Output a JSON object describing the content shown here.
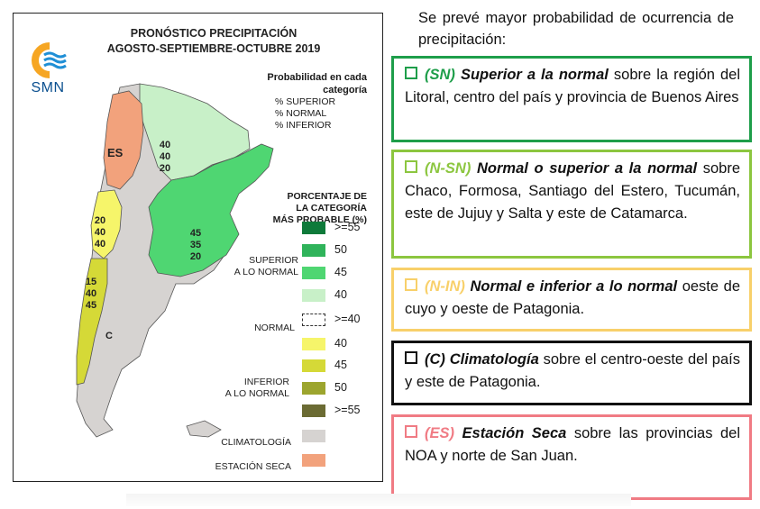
{
  "map": {
    "title_line1": "PRONÓSTICO PRECIPITACIÓN",
    "title_line2": "AGOSTO-SEPTIEMBRE-OCTUBRE 2019",
    "logo_text": "SMN",
    "prob_header": [
      "Probabilidad en cada",
      "categoría"
    ],
    "prob_lines": [
      "% SUPERIOR",
      "% NORMAL",
      "% INFERIOR"
    ],
    "pct_header": [
      "PORCENTAJE DE",
      "LA CATEGORÍA",
      "MÁS PROBABLE (%)"
    ],
    "groups": {
      "superior": [
        "SUPERIOR",
        "A LO NORMAL"
      ],
      "normal": "NORMAL",
      "inferior": [
        "INFERIOR",
        "A LO NORMAL"
      ],
      "climatologia": "CLIMATOLOGÍA",
      "estacion_seca": "ESTACIÓN SECA"
    },
    "legend": [
      {
        "label": ">=55",
        "color": "#0e7a3a"
      },
      {
        "label": "50",
        "color": "#2fb35a"
      },
      {
        "label": "45",
        "color": "#4fd672"
      },
      {
        "label": "40",
        "color": "#c8f0c8"
      },
      {
        "label": ">=40",
        "color": "#ffffff",
        "dashed": true
      },
      {
        "label": "40",
        "color": "#f6f56a"
      },
      {
        "label": "45",
        "color": "#d5d937"
      },
      {
        "label": "50",
        "color": "#9ca52e"
      },
      {
        "label": ">=55",
        "color": "#6b6b33"
      },
      {
        "label": "",
        "color": "#d6d3d1"
      },
      {
        "label": "",
        "color": "#f2a27c"
      }
    ],
    "region_labels": {
      "es": "ES",
      "nw_light": [
        "40",
        "40",
        "20"
      ],
      "green": [
        "45",
        "35",
        "20"
      ],
      "yellow1": [
        "20",
        "40",
        "40"
      ],
      "yellow2": [
        "15",
        "40",
        "45"
      ],
      "c": "C"
    },
    "colors": {
      "light_green": "#c8f0c8",
      "green": "#4fd672",
      "yellow": "#f6f56a",
      "olive": "#d5d937",
      "gray": "#d6d3d1",
      "orange": "#f2a27c"
    }
  },
  "intro_text": "Se prevé mayor probabilidad de ocurrencia de precipitación:",
  "boxes": [
    {
      "border": "#1e9e4a",
      "code_color": "#1e9e4a",
      "code": "(SN)",
      "bold": "Superior a la normal",
      "rest": " sobre la región del Litoral, centro del país y provincia de Buenos Aires"
    },
    {
      "border": "#8cc63f",
      "code_color": "#8cc63f",
      "code": "(N-SN)",
      "bold": "Normal o superior a la normal",
      "rest": " sobre Chaco, Formosa, Santiago del Estero, Tucumán, este de Jujuy y Salta y este de Catamarca."
    },
    {
      "border": "#f8d06a",
      "code_color": "#f8d06a",
      "code": "(N-IN)",
      "bold": "Normal e inferior a lo normal",
      "rest": " oeste de cuyo y oeste de Patagonia."
    },
    {
      "border": "#111111",
      "code_color": "#111111",
      "code": "(C)",
      "bold": "Climatología",
      "rest": " sobre el centro-oeste del país y este de Patagonia."
    },
    {
      "border": "#f07b84",
      "code_color": "#f07b84",
      "code": "(ES)",
      "bold": "Estación Seca",
      "rest": " sobre las provincias del NOA y norte de San Juan."
    }
  ]
}
